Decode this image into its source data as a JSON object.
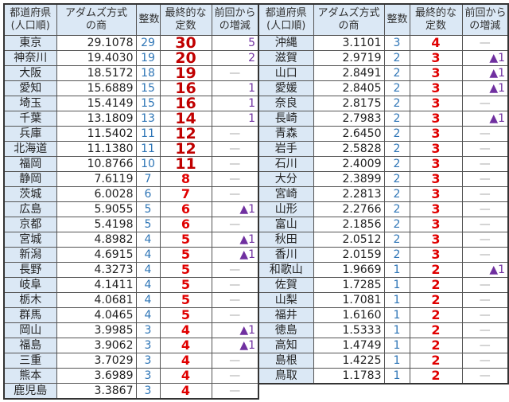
{
  "headers": [
    "都道府県\n(人口順)",
    "アダムズ方式\nの商",
    "整数",
    "最終的な\n定数",
    "前回から\nの増減"
  ],
  "colors": {
    "header_bg": "#dbe8f5",
    "integer": "#2e75b6",
    "final": "#e00000",
    "change": "#7030a0",
    "dash": "#aaaaaa"
  },
  "left": [
    [
      "東京",
      "29.1078",
      "29",
      "30",
      "5"
    ],
    [
      "神奈川",
      "19.4030",
      "19",
      "20",
      "2"
    ],
    [
      "大阪",
      "18.5172",
      "18",
      "19",
      "—"
    ],
    [
      "愛知",
      "15.6889",
      "15",
      "16",
      "1"
    ],
    [
      "埼玉",
      "15.4149",
      "15",
      "16",
      "1"
    ],
    [
      "千葉",
      "13.1809",
      "13",
      "14",
      "1"
    ],
    [
      "兵庫",
      "11.5402",
      "11",
      "12",
      "—"
    ],
    [
      "北海道",
      "11.1380",
      "11",
      "12",
      "—"
    ],
    [
      "福岡",
      "10.8766",
      "10",
      "11",
      "—"
    ],
    [
      "静岡",
      "7.6119",
      "7",
      "8",
      "—"
    ],
    [
      "茨城",
      "6.0028",
      "6",
      "7",
      "—"
    ],
    [
      "広島",
      "5.9055",
      "5",
      "6",
      "▲1"
    ],
    [
      "京都",
      "5.4198",
      "5",
      "6",
      "—"
    ],
    [
      "宮城",
      "4.8982",
      "4",
      "5",
      "▲1"
    ],
    [
      "新潟",
      "4.6915",
      "4",
      "5",
      "▲1"
    ],
    [
      "長野",
      "4.3273",
      "4",
      "5",
      "—"
    ],
    [
      "岐阜",
      "4.1411",
      "4",
      "5",
      "—"
    ],
    [
      "栃木",
      "4.0681",
      "4",
      "5",
      "—"
    ],
    [
      "群馬",
      "4.0465",
      "4",
      "5",
      "—"
    ],
    [
      "岡山",
      "3.9985",
      "3",
      "4",
      "▲1"
    ],
    [
      "福島",
      "3.9062",
      "3",
      "4",
      "▲1"
    ],
    [
      "三重",
      "3.7029",
      "3",
      "4",
      "—"
    ],
    [
      "熊本",
      "3.6989",
      "3",
      "4",
      "—"
    ],
    [
      "鹿児島",
      "3.3867",
      "3",
      "4",
      "—"
    ]
  ],
  "right": [
    [
      "沖縄",
      "3.1101",
      "3",
      "4",
      "—"
    ],
    [
      "滋賀",
      "2.9719",
      "2",
      "3",
      "▲1"
    ],
    [
      "山口",
      "2.8491",
      "2",
      "3",
      "▲1"
    ],
    [
      "愛媛",
      "2.8405",
      "2",
      "3",
      "▲1"
    ],
    [
      "奈良",
      "2.8175",
      "2",
      "3",
      "—"
    ],
    [
      "長崎",
      "2.7983",
      "2",
      "3",
      "▲1"
    ],
    [
      "青森",
      "2.6450",
      "2",
      "3",
      "—"
    ],
    [
      "岩手",
      "2.5828",
      "2",
      "3",
      "—"
    ],
    [
      "石川",
      "2.4009",
      "2",
      "3",
      "—"
    ],
    [
      "大分",
      "2.3899",
      "2",
      "3",
      "—"
    ],
    [
      "宮崎",
      "2.2813",
      "2",
      "3",
      "—"
    ],
    [
      "山形",
      "2.2766",
      "2",
      "3",
      "—"
    ],
    [
      "富山",
      "2.1856",
      "2",
      "3",
      "—"
    ],
    [
      "秋田",
      "2.0512",
      "2",
      "3",
      "—"
    ],
    [
      "香川",
      "2.0159",
      "2",
      "3",
      "—"
    ],
    [
      "和歌山",
      "1.9669",
      "1",
      "2",
      "▲1"
    ],
    [
      "佐賀",
      "1.7285",
      "1",
      "2",
      "—"
    ],
    [
      "山梨",
      "1.7081",
      "1",
      "2",
      "—"
    ],
    [
      "福井",
      "1.6160",
      "1",
      "2",
      "—"
    ],
    [
      "徳島",
      "1.5333",
      "1",
      "2",
      "—"
    ],
    [
      "高知",
      "1.4749",
      "1",
      "2",
      "—"
    ],
    [
      "島根",
      "1.4225",
      "1",
      "2",
      "—"
    ],
    [
      "鳥取",
      "1.1783",
      "1",
      "2",
      "—"
    ]
  ]
}
